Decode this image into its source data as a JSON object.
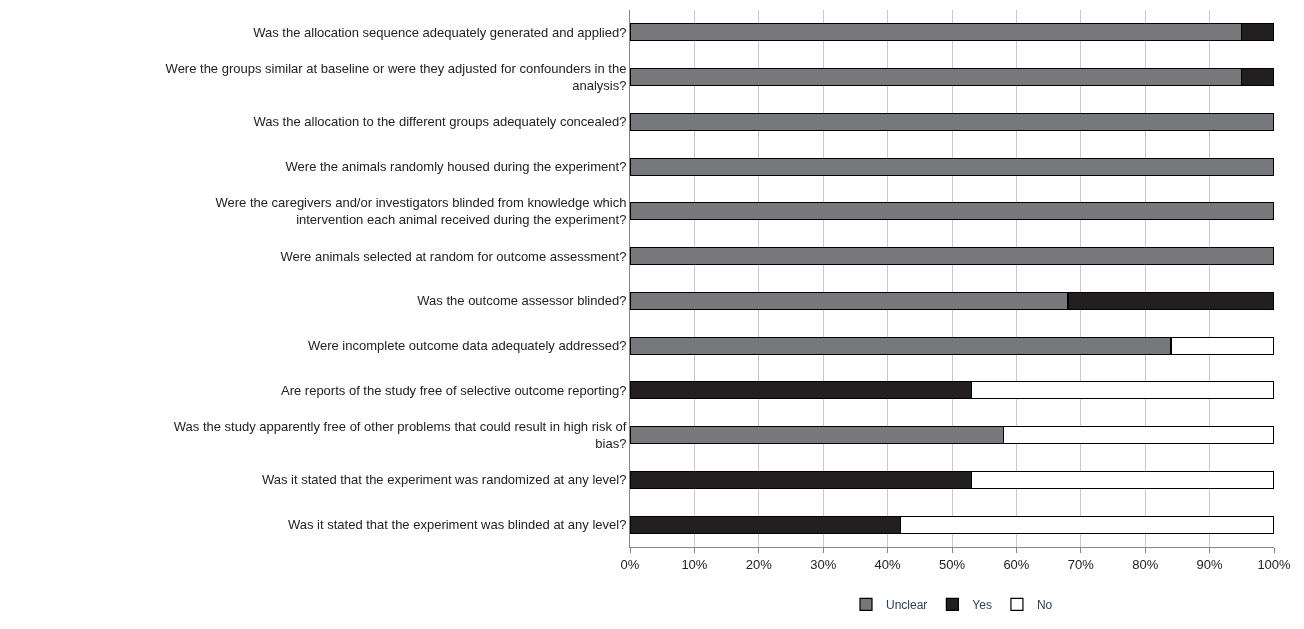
{
  "chart_data": {
    "type": "bar",
    "orientation": "horizontal",
    "stacked": true,
    "categories": [
      "Was the allocation sequence adequately generated and applied?",
      "Were the groups similar at baseline or were they adjusted for confounders in the analysis?",
      "Was the allocation to the different groups adequately concealed?",
      "Were the animals randomly housed during the experiment?",
      "Were the caregivers and/or investigators blinded from knowledge which intervention each animal received during the experiment?",
      "Were animals selected at random for outcome assessment?",
      "Was the outcome assessor blinded?",
      "Were incomplete outcome data adequately addressed?",
      "Are reports of the study free of selective outcome reporting?",
      "Was the study apparently free of other problems that could result in high risk of bias?",
      "Was it stated that the experiment was randomized at any level?",
      "Was it stated that the experiment was blinded at any level?"
    ],
    "series": [
      {
        "name": "Unclear",
        "color": "#77787b",
        "values": [
          95,
          95,
          100,
          100,
          100,
          100,
          68,
          84,
          0,
          58,
          0,
          0
        ]
      },
      {
        "name": "Yes",
        "color": "#231f20",
        "values": [
          5,
          5,
          0,
          0,
          0,
          0,
          32,
          0,
          53,
          0,
          53,
          42
        ]
      },
      {
        "name": "No",
        "color": "#ffffff",
        "values": [
          0,
          0,
          0,
          0,
          0,
          0,
          0,
          16,
          47,
          42,
          47,
          58
        ]
      }
    ],
    "xlim": [
      0,
      100
    ],
    "xticks": [
      {
        "value": 0,
        "label": "0%"
      },
      {
        "value": 10,
        "label": "10%"
      },
      {
        "value": 20,
        "label": "20%"
      },
      {
        "value": 30,
        "label": "30%"
      },
      {
        "value": 40,
        "label": "40%"
      },
      {
        "value": 50,
        "label": "50%"
      },
      {
        "value": 60,
        "label": "60%"
      },
      {
        "value": 70,
        "label": "70%"
      },
      {
        "value": 80,
        "label": "80%"
      },
      {
        "value": 90,
        "label": "90%"
      },
      {
        "value": 100,
        "label": "100%"
      }
    ],
    "grid": "x",
    "legend": "bottom"
  }
}
